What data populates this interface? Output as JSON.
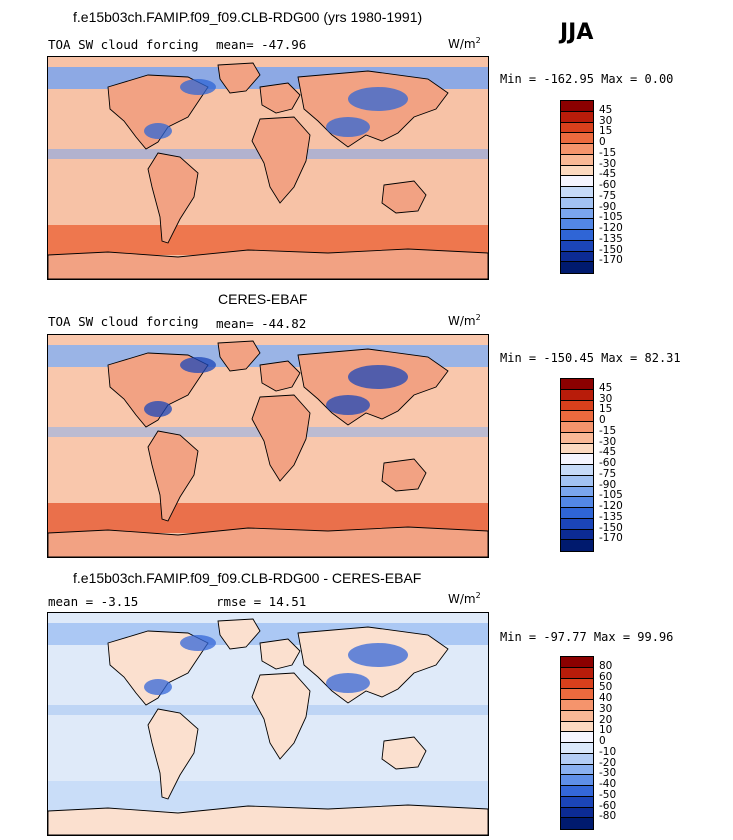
{
  "title": "f.e15b03ch.FAMIP.f09_f09.CLB-RDG00 (yrs 1980-1991)",
  "season": "JJA",
  "panels": [
    {
      "heading": "",
      "left_label": "TOA SW cloud forcing",
      "mean_label": "mean= -47.96",
      "rmse_label": "",
      "units": "W/m",
      "units_exp": "2",
      "minmax": "Min = -162.95 Max =   0.00",
      "ticks": [
        "45",
        "30",
        "15",
        "0",
        "-15",
        "-30",
        "-45",
        "-60",
        "-75",
        "-90",
        "-105",
        "-120",
        "-135",
        "-150",
        "-170"
      ],
      "colors": [
        "#8b0000",
        "#b81c0a",
        "#d8401c",
        "#ec6a3e",
        "#f5946c",
        "#f9b896",
        "#fcd9c0",
        "#f5f5ff",
        "#c6daf8",
        "#a2c2f3",
        "#7aa5ee",
        "#5387e6",
        "#2f65d6",
        "#1b45b8",
        "#0c2b94",
        "#001a6e"
      ],
      "map_colors": {
        "ocean": "#f7c2a6",
        "land": "#f2a283",
        "cloud": "#7aa5ee",
        "deep": "#2f65d6",
        "south": "#ec6a3e"
      }
    },
    {
      "heading": "CERES-EBAF",
      "left_label": "TOA SW cloud forcing",
      "mean_label": "mean= -44.82",
      "rmse_label": "",
      "units": "W/m",
      "units_exp": "2",
      "minmax": "Min = -150.45 Max =  82.31",
      "ticks": [
        "45",
        "30",
        "15",
        "0",
        "-15",
        "-30",
        "-45",
        "-60",
        "-75",
        "-90",
        "-105",
        "-120",
        "-135",
        "-150",
        "-170"
      ],
      "colors": [
        "#8b0000",
        "#b81c0a",
        "#d8401c",
        "#ec6a3e",
        "#f5946c",
        "#f9b896",
        "#fcd9c0",
        "#f5f5ff",
        "#c6daf8",
        "#a2c2f3",
        "#7aa5ee",
        "#5387e6",
        "#2f65d6",
        "#1b45b8",
        "#0c2b94",
        "#001a6e"
      ],
      "map_colors": {
        "ocean": "#f9c7ac",
        "land": "#f2a283",
        "cloud": "#8ab0f0",
        "deep": "#1b45b8",
        "south": "#e8603a"
      }
    },
    {
      "heading": "f.e15b03ch.FAMIP.f09_f09.CLB-RDG00 - CERES-EBAF",
      "left_label": "mean =   -3.15",
      "mean_label": "",
      "rmse_label": "rmse =   14.51",
      "units": "W/m",
      "units_exp": "2",
      "minmax": "Min = -97.77 Max =  99.96",
      "ticks": [
        "80",
        "60",
        "50",
        "40",
        "30",
        "20",
        "10",
        "0",
        "-10",
        "-20",
        "-30",
        "-40",
        "-50",
        "-60",
        "-80"
      ],
      "colors": [
        "#8b0000",
        "#b81c0a",
        "#d8401c",
        "#ec6a3e",
        "#f5946c",
        "#f9b896",
        "#fcd9c0",
        "#f5f5ff",
        "#dbe8fb",
        "#b4cdf5",
        "#8ab0f0",
        "#5f8fe8",
        "#3467d8",
        "#1b45b8",
        "#0c2b94",
        "#001a6e"
      ],
      "map_colors": {
        "ocean": "#dfeaf9",
        "land": "#fbe0cf",
        "cloud": "#a2c2f3",
        "deep": "#3467d8",
        "south": "#c6daf8"
      }
    }
  ]
}
